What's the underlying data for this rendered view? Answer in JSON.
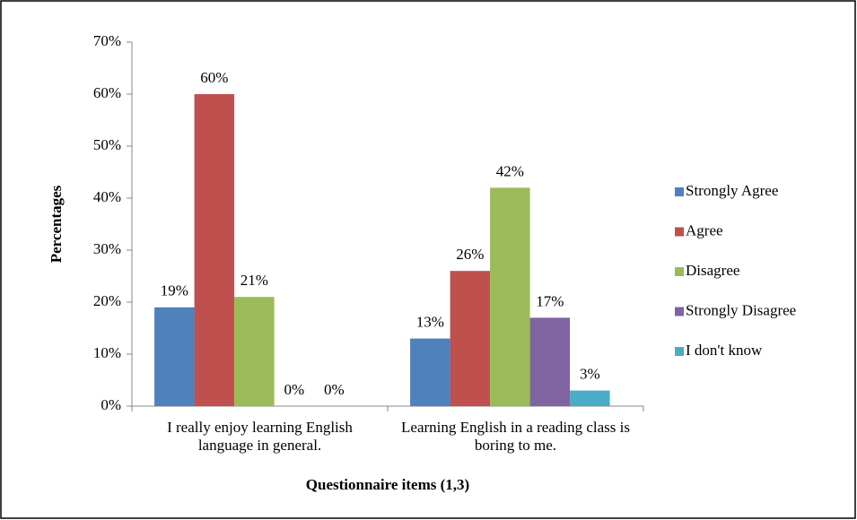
{
  "chart_data": {
    "type": "bar",
    "y_axis_label": "Percentages",
    "x_axis_label": "Questionnaire items (1,3)",
    "categories": [
      "I really enjoy learning English language in general.",
      "Learning English in a reading class is boring to me."
    ],
    "series": [
      {
        "name": "Strongly Agree",
        "color": "#4f81bd",
        "values": [
          19,
          13
        ],
        "value_labels": [
          "19%",
          "13%"
        ]
      },
      {
        "name": "Agree",
        "color": "#c0504d",
        "values": [
          60,
          26
        ],
        "value_labels": [
          "60%",
          "26%"
        ]
      },
      {
        "name": "Disagree",
        "color": "#9bbb59",
        "values": [
          21,
          42
        ],
        "value_labels": [
          "21%",
          "42%"
        ]
      },
      {
        "name": "Strongly Disagree",
        "color": "#8064a2",
        "values": [
          0,
          17
        ],
        "value_labels": [
          "0%",
          "17%"
        ]
      },
      {
        "name": "I don't know",
        "color": "#4bacc6",
        "values": [
          0,
          3
        ],
        "value_labels": [
          "0%",
          "3%"
        ]
      }
    ],
    "ylim": [
      0,
      70
    ],
    "yticks": [
      {
        "value": 0,
        "label": "0%"
      },
      {
        "value": 10,
        "label": "10%"
      },
      {
        "value": 20,
        "label": "20%"
      },
      {
        "value": 30,
        "label": "30%"
      },
      {
        "value": 40,
        "label": "40%"
      },
      {
        "value": 50,
        "label": "50%"
      },
      {
        "value": 60,
        "label": "60%"
      },
      {
        "value": 70,
        "label": "70%"
      }
    ],
    "grid": false,
    "legend": "right"
  }
}
